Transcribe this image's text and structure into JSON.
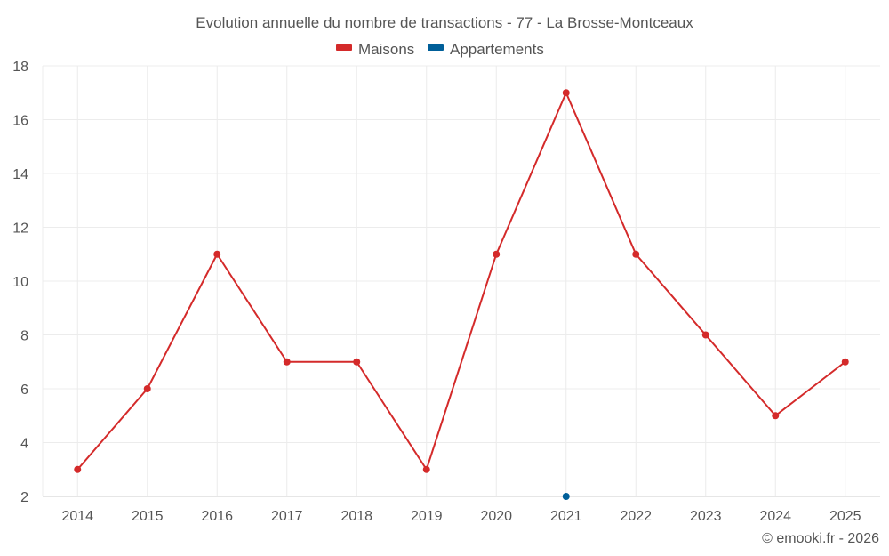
{
  "chart_data": {
    "type": "line",
    "title": "Evolution annuelle du nombre de transactions - 77 - La Brosse-Montceaux",
    "categories": [
      "2014",
      "2015",
      "2016",
      "2017",
      "2018",
      "2019",
      "2020",
      "2021",
      "2022",
      "2023",
      "2024",
      "2025"
    ],
    "series": [
      {
        "name": "Maisons",
        "color": "#d42a2a",
        "values": [
          3,
          6,
          11,
          7,
          7,
          3,
          11,
          17,
          11,
          8,
          5,
          7
        ]
      },
      {
        "name": "Appartements",
        "color": "#005f99",
        "values": [
          null,
          null,
          null,
          null,
          null,
          null,
          null,
          2,
          null,
          null,
          null,
          null
        ]
      }
    ],
    "ylim": [
      2,
      18
    ],
    "yticks": [
      2,
      4,
      6,
      8,
      10,
      12,
      14,
      16,
      18
    ],
    "grid": true,
    "legend": "top-center",
    "xlabel": "",
    "ylabel": ""
  },
  "credit": "© emooki.fr - 2026"
}
